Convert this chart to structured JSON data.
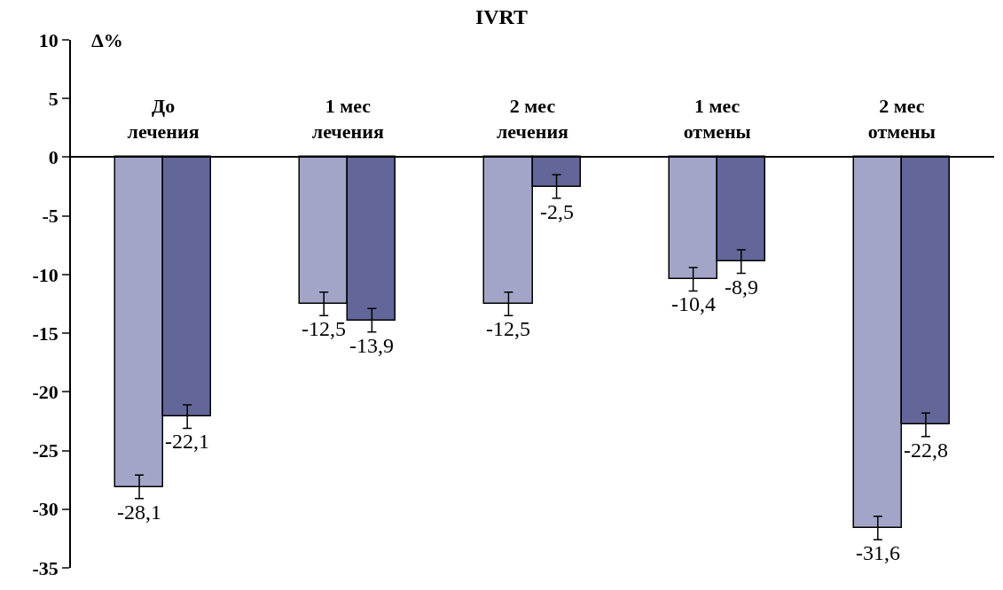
{
  "chart_data": {
    "type": "bar",
    "title": "IVRT",
    "ylabel": "Δ%",
    "categories": [
      "До\nлечения",
      "1 мес\nлечения",
      "2 мес\nлечения",
      "1 мес\nотмены",
      "2 мес\nотмены"
    ],
    "series": [
      {
        "color": "#a3a5c8",
        "values": [
          -28.1,
          -12.5,
          -12.5,
          -10.4,
          -31.6
        ],
        "errors": [
          1,
          1,
          1,
          1,
          1
        ],
        "value_labels": [
          "-28,1",
          "-12,5",
          "-12,5",
          "-10,4",
          "-31,6"
        ]
      },
      {
        "color": "#636699",
        "values": [
          -22.1,
          -13.9,
          -2.5,
          -8.9,
          -22.8
        ],
        "errors": [
          1,
          1,
          1,
          1,
          1
        ],
        "value_labels": [
          "-22,1",
          "-13,9",
          "-2,5",
          "-8,9",
          "-22,8"
        ]
      }
    ],
    "ylim": [
      -35,
      10
    ],
    "yticks": [
      -35,
      -30,
      -25,
      -20,
      -15,
      -10,
      -5,
      0,
      5,
      10
    ]
  }
}
